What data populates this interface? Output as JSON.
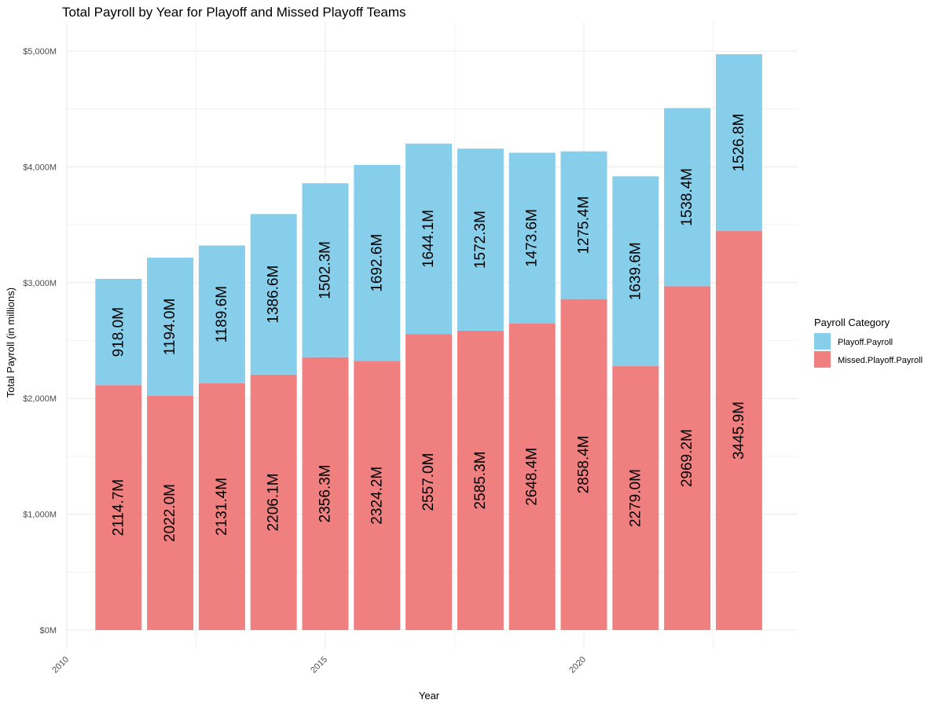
{
  "chart_data": {
    "type": "bar",
    "stacked": true,
    "title": "Total Payroll by Year for Playoff and Missed Playoff Teams",
    "xlabel": "Year",
    "ylabel": "Total Payroll (in millions)",
    "x": [
      2011,
      2012,
      2013,
      2014,
      2015,
      2016,
      2017,
      2018,
      2019,
      2020,
      2021,
      2022,
      2023
    ],
    "x_ticks": [
      "2010",
      "2015",
      "2020"
    ],
    "y_ticks": [
      "$0M",
      "$1,000M",
      "$2,000M",
      "$3,000M",
      "$4,000M",
      "$5,000M"
    ],
    "xlim": [
      2010,
      2024
    ],
    "ylim": [
      0,
      5000
    ],
    "series": [
      {
        "name": "Missed.Playoff.Payroll",
        "color": "#F08080",
        "values": [
          2114.7,
          2022.0,
          2131.4,
          2206.1,
          2356.3,
          2324.2,
          2557.0,
          2585.3,
          2648.4,
          2858.4,
          2279.0,
          2969.2,
          3445.9
        ],
        "labels": [
          "2114.7M",
          "2022.0M",
          "2131.4M",
          "2206.1M",
          "2356.3M",
          "2324.2M",
          "2557.0M",
          "2585.3M",
          "2648.4M",
          "2858.4M",
          "2279.0M",
          "2969.2M",
          "3445.9M"
        ]
      },
      {
        "name": "Playoff.Payroll",
        "color": "#87CEEB",
        "values": [
          918.0,
          1194.0,
          1189.6,
          1386.6,
          1502.3,
          1692.6,
          1644.1,
          1572.3,
          1473.6,
          1275.4,
          1639.6,
          1538.4,
          1526.8
        ],
        "labels": [
          "918.0M",
          "1194.0M",
          "1189.6M",
          "1386.6M",
          "1502.3M",
          "1692.6M",
          "1644.1M",
          "1572.3M",
          "1473.6M",
          "1275.4M",
          "1639.6M",
          "1538.4M",
          "1526.8M"
        ]
      }
    ],
    "legend": {
      "title": "Payroll Category",
      "position": "right",
      "items": [
        "Playoff.Payroll",
        "Missed.Playoff.Payroll"
      ]
    },
    "grid": true,
    "background": "#ffffff",
    "grid_color": "#ebebeb"
  }
}
